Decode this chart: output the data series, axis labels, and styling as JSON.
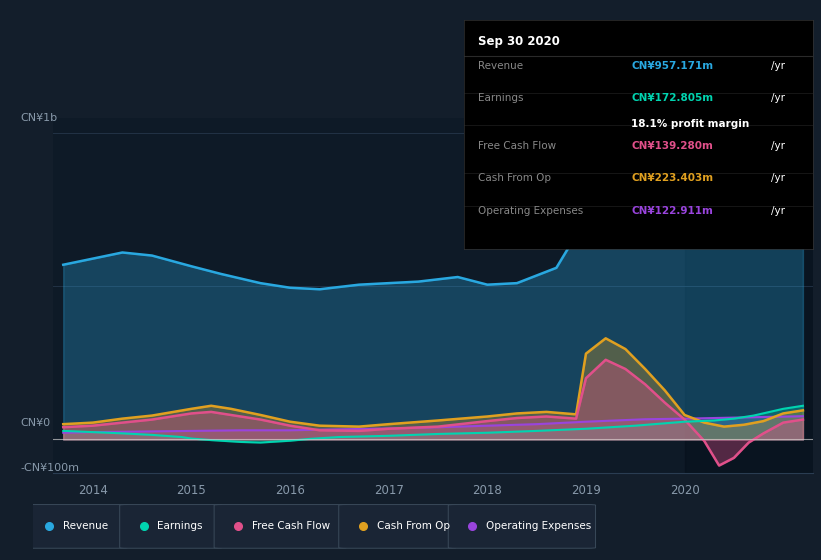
{
  "bg_color": "#131e2b",
  "plot_bg_color": "#0e1a27",
  "y_label_top": "CN¥1b",
  "y_label_zero": "CN¥0",
  "y_label_bottom": "-CN¥100m",
  "x_ticks": [
    2014,
    2015,
    2016,
    2017,
    2018,
    2019,
    2020
  ],
  "ylim": [
    -110,
    1050
  ],
  "xlim": [
    2013.6,
    2021.3
  ],
  "revenue_color": "#29a8e0",
  "earnings_color": "#00d4b0",
  "fcf_color": "#e0508a",
  "cashfromop_color": "#e0a020",
  "opex_color": "#9944dd",
  "info_box": {
    "date": "Sep 30 2020",
    "revenue_val": "CN¥957.171m",
    "earnings_val": "CN¥172.805m",
    "profit_margin": "18.1%",
    "fcf_val": "CN¥139.280m",
    "cashfromop_val": "CN¥223.403m",
    "opex_val": "CN¥122.911m"
  },
  "revenue": [
    [
      2013.7,
      570
    ],
    [
      2014.0,
      590
    ],
    [
      2014.3,
      610
    ],
    [
      2014.6,
      600
    ],
    [
      2015.0,
      565
    ],
    [
      2015.3,
      540
    ],
    [
      2015.7,
      510
    ],
    [
      2016.0,
      495
    ],
    [
      2016.3,
      490
    ],
    [
      2016.7,
      505
    ],
    [
      2017.0,
      510
    ],
    [
      2017.3,
      515
    ],
    [
      2017.7,
      530
    ],
    [
      2018.0,
      505
    ],
    [
      2018.3,
      510
    ],
    [
      2018.7,
      560
    ],
    [
      2019.0,
      720
    ],
    [
      2019.2,
      830
    ],
    [
      2019.4,
      870
    ],
    [
      2019.6,
      840
    ],
    [
      2019.8,
      790
    ],
    [
      2020.0,
      700
    ],
    [
      2020.2,
      670
    ],
    [
      2020.4,
      650
    ],
    [
      2020.55,
      655
    ],
    [
      2020.7,
      700
    ],
    [
      2020.9,
      790
    ],
    [
      2021.1,
      870
    ],
    [
      2021.2,
      900
    ]
  ],
  "earnings": [
    [
      2013.7,
      28
    ],
    [
      2014.0,
      24
    ],
    [
      2014.3,
      20
    ],
    [
      2014.6,
      15
    ],
    [
      2014.9,
      8
    ],
    [
      2015.0,
      3
    ],
    [
      2015.2,
      -2
    ],
    [
      2015.5,
      -8
    ],
    [
      2015.7,
      -10
    ],
    [
      2016.0,
      -4
    ],
    [
      2016.2,
      2
    ],
    [
      2016.5,
      8
    ],
    [
      2017.0,
      12
    ],
    [
      2017.5,
      18
    ],
    [
      2018.0,
      22
    ],
    [
      2018.5,
      28
    ],
    [
      2019.0,
      35
    ],
    [
      2019.5,
      45
    ],
    [
      2020.0,
      58
    ],
    [
      2020.3,
      62
    ],
    [
      2020.5,
      68
    ],
    [
      2020.7,
      78
    ],
    [
      2021.0,
      100
    ],
    [
      2021.2,
      110
    ]
  ],
  "fcf": [
    [
      2013.7,
      40
    ],
    [
      2014.0,
      45
    ],
    [
      2014.3,
      55
    ],
    [
      2014.6,
      65
    ],
    [
      2015.0,
      85
    ],
    [
      2015.2,
      90
    ],
    [
      2015.4,
      80
    ],
    [
      2015.7,
      65
    ],
    [
      2016.0,
      45
    ],
    [
      2016.3,
      30
    ],
    [
      2016.7,
      28
    ],
    [
      2017.0,
      35
    ],
    [
      2017.5,
      42
    ],
    [
      2018.0,
      60
    ],
    [
      2018.3,
      70
    ],
    [
      2018.6,
      75
    ],
    [
      2018.9,
      68
    ],
    [
      2019.0,
      200
    ],
    [
      2019.2,
      260
    ],
    [
      2019.4,
      230
    ],
    [
      2019.6,
      180
    ],
    [
      2019.8,
      120
    ],
    [
      2020.0,
      65
    ],
    [
      2020.1,
      30
    ],
    [
      2020.2,
      -5
    ],
    [
      2020.35,
      -85
    ],
    [
      2020.5,
      -60
    ],
    [
      2020.65,
      -10
    ],
    [
      2020.8,
      20
    ],
    [
      2021.0,
      55
    ],
    [
      2021.2,
      65
    ]
  ],
  "cashfromop": [
    [
      2013.7,
      50
    ],
    [
      2014.0,
      55
    ],
    [
      2014.3,
      68
    ],
    [
      2014.6,
      78
    ],
    [
      2015.0,
      100
    ],
    [
      2015.2,
      110
    ],
    [
      2015.4,
      100
    ],
    [
      2015.7,
      80
    ],
    [
      2016.0,
      58
    ],
    [
      2016.3,
      45
    ],
    [
      2016.7,
      42
    ],
    [
      2017.0,
      50
    ],
    [
      2017.5,
      62
    ],
    [
      2018.0,
      75
    ],
    [
      2018.3,
      85
    ],
    [
      2018.6,
      90
    ],
    [
      2018.9,
      82
    ],
    [
      2019.0,
      280
    ],
    [
      2019.2,
      330
    ],
    [
      2019.4,
      295
    ],
    [
      2019.6,
      230
    ],
    [
      2019.8,
      160
    ],
    [
      2020.0,
      80
    ],
    [
      2020.2,
      55
    ],
    [
      2020.4,
      42
    ],
    [
      2020.6,
      48
    ],
    [
      2020.8,
      60
    ],
    [
      2021.0,
      85
    ],
    [
      2021.2,
      95
    ]
  ],
  "opex": [
    [
      2013.7,
      22
    ],
    [
      2014.0,
      24
    ],
    [
      2014.5,
      26
    ],
    [
      2015.0,
      28
    ],
    [
      2015.5,
      30
    ],
    [
      2016.0,
      30
    ],
    [
      2016.3,
      32
    ],
    [
      2017.0,
      36
    ],
    [
      2017.5,
      40
    ],
    [
      2018.0,
      45
    ],
    [
      2018.5,
      50
    ],
    [
      2019.0,
      58
    ],
    [
      2019.3,
      62
    ],
    [
      2019.6,
      66
    ],
    [
      2020.0,
      68
    ],
    [
      2020.3,
      70
    ],
    [
      2020.6,
      72
    ],
    [
      2020.9,
      74
    ],
    [
      2021.2,
      76
    ]
  ],
  "legend_items": [
    {
      "label": "Revenue",
      "color": "#29a8e0"
    },
    {
      "label": "Earnings",
      "color": "#00d4b0"
    },
    {
      "label": "Free Cash Flow",
      "color": "#e0508a"
    },
    {
      "label": "Cash From Op",
      "color": "#e0a020"
    },
    {
      "label": "Operating Expenses",
      "color": "#9944dd"
    }
  ]
}
